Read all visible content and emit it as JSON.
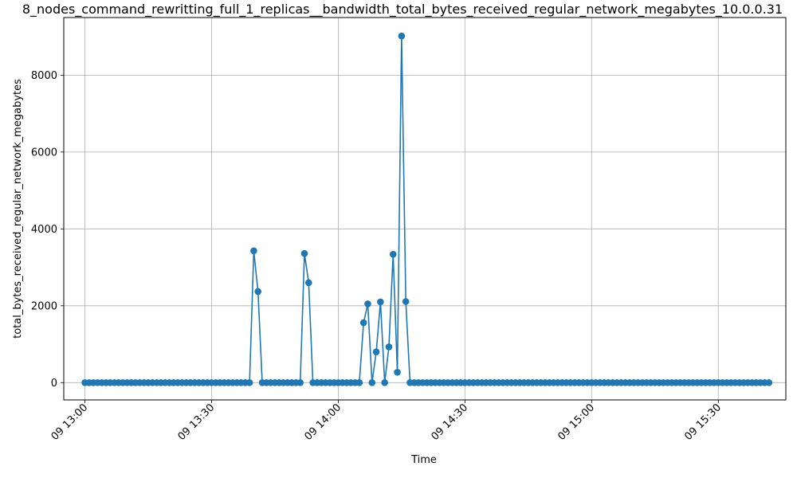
{
  "chart_data": {
    "type": "line",
    "title": "8_nodes_command_rewritting_full_1_replicas__bandwidth_total_bytes_received_regular_network_megabytes_10.0.0.31",
    "xlabel": "Time",
    "ylabel": "total_bytes_received_regular_network_megabytes",
    "x_start": "13:00",
    "x_end": "15:42",
    "xlim": [
      "12:55",
      "15:46"
    ],
    "ylim": [
      -450,
      9500
    ],
    "x_ticks": [
      {
        "time": "13:00",
        "label": "09 13:00"
      },
      {
        "time": "13:30",
        "label": "09 13:30"
      },
      {
        "time": "14:00",
        "label": "09 14:00"
      },
      {
        "time": "14:30",
        "label": "09 14:30"
      },
      {
        "time": "15:00",
        "label": "09 15:00"
      },
      {
        "time": "15:30",
        "label": "09 15:30"
      }
    ],
    "y_ticks": [
      0,
      2000,
      4000,
      6000,
      8000
    ],
    "grid": true,
    "color": "#1f77b4",
    "series": [
      {
        "name": "",
        "values": [
          0,
          0,
          0,
          0,
          0,
          0,
          0,
          0,
          0,
          0,
          0,
          0,
          0,
          0,
          0,
          0,
          0,
          0,
          0,
          0,
          0,
          0,
          0,
          0,
          0,
          0,
          0,
          0,
          0,
          0,
          0,
          0,
          0,
          0,
          0,
          0,
          0,
          0,
          0,
          0,
          3430,
          2370,
          0,
          0,
          0,
          0,
          0,
          0,
          0,
          0,
          0,
          0,
          3360,
          2600,
          0,
          0,
          0,
          0,
          0,
          0,
          0,
          0,
          0,
          0,
          0,
          0,
          1560,
          2050,
          0,
          800,
          2100,
          0,
          930,
          3340,
          270,
          9020,
          2110,
          0,
          0,
          0,
          0,
          0,
          0,
          0,
          0,
          0,
          0,
          0,
          0,
          0,
          0,
          0,
          0,
          0,
          0,
          0,
          0,
          0,
          0,
          0,
          0,
          0,
          0,
          0,
          0,
          0,
          0,
          0,
          0,
          0,
          0,
          0,
          0,
          0,
          0,
          0,
          0,
          0,
          0,
          0,
          0,
          0,
          0,
          0,
          0,
          0,
          0,
          0,
          0,
          0,
          0,
          0,
          0,
          0,
          0,
          0,
          0,
          0,
          0,
          0,
          0,
          0,
          0,
          0,
          0,
          0,
          0,
          0,
          0,
          0,
          0,
          0,
          0,
          0,
          0,
          0,
          0,
          0,
          0,
          0,
          0,
          0,
          0
        ]
      }
    ]
  }
}
